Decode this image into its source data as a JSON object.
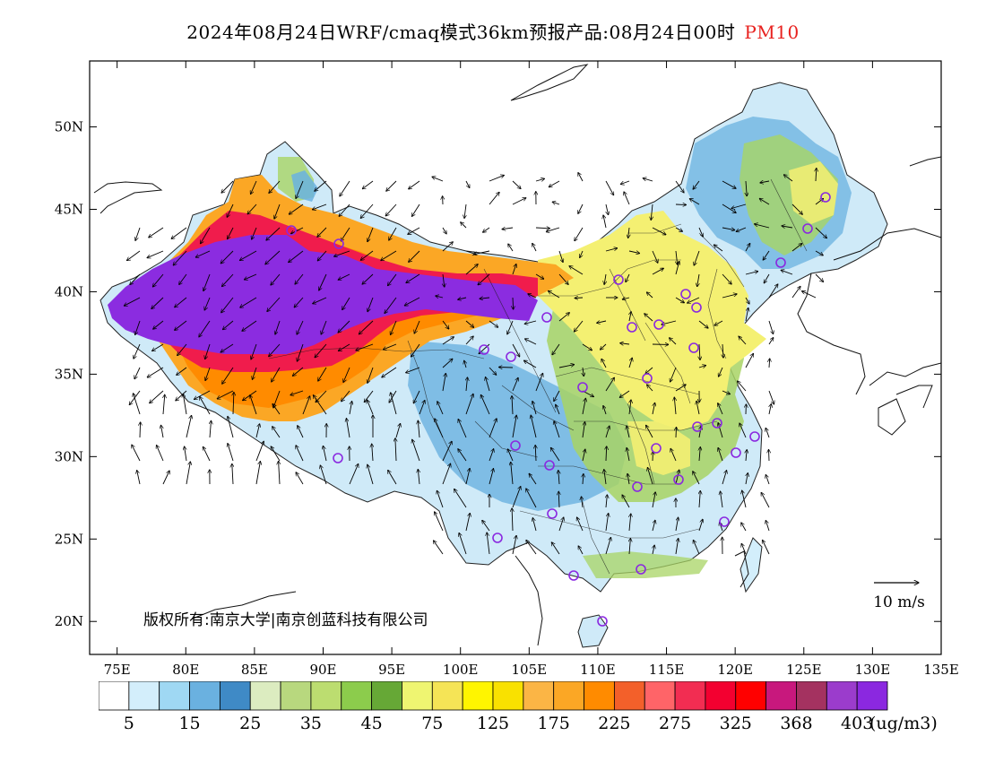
{
  "title": {
    "text": "2024年08月24日WRF/cmaq模式36km预报产品:08月24日00时",
    "species": "PM10"
  },
  "axes": {
    "lon_labels": [
      "75E",
      "80E",
      "85E",
      "90E",
      "95E",
      "100E",
      "105E",
      "110E",
      "115E",
      "120E",
      "125E",
      "130E",
      "135E"
    ],
    "lat_labels": [
      "20N",
      "25N",
      "30N",
      "35N",
      "40N",
      "45N",
      "50N"
    ],
    "lon_range": [
      73,
      135
    ],
    "lat_range": [
      18,
      54
    ]
  },
  "copyright": "版权所有:南京大学|南京创蓝科技有限公司",
  "wind_legend": {
    "label": "10 m/s"
  },
  "colorbar": {
    "unit": "(ug/m3)",
    "labels": [
      "5",
      "15",
      "25",
      "35",
      "45",
      "75",
      "125",
      "175",
      "225",
      "275",
      "325",
      "368",
      "403"
    ],
    "colors": [
      "#ffffff",
      "#d3eefb",
      "#9fd8f3",
      "#6ab1e0",
      "#3f8ac6",
      "#dcecc0",
      "#b8d87e",
      "#bcdd70",
      "#8ccc4c",
      "#66a836",
      "#eff571",
      "#f5e456",
      "#fff500",
      "#f9e100",
      "#fbb545",
      "#fba725",
      "#ff8b00",
      "#f3602a",
      "#ff6468",
      "#f22d52",
      "#f30030",
      "#ff0000",
      "#c8187d",
      "#a43260",
      "#9b3ccc",
      "#8b28e0"
    ]
  },
  "map_colors": {
    "extreme": "#8b2ce0",
    "very_high": "#f01c4c",
    "high": "#ff8b00",
    "mid_high": "#fba725",
    "moderate": "#fff200",
    "low_moderate": "#f4f072",
    "green": "#a8d464",
    "blue": "#6ab1e0",
    "light_blue": "#cfeaf8",
    "station_marker": "#8a28e0"
  }
}
